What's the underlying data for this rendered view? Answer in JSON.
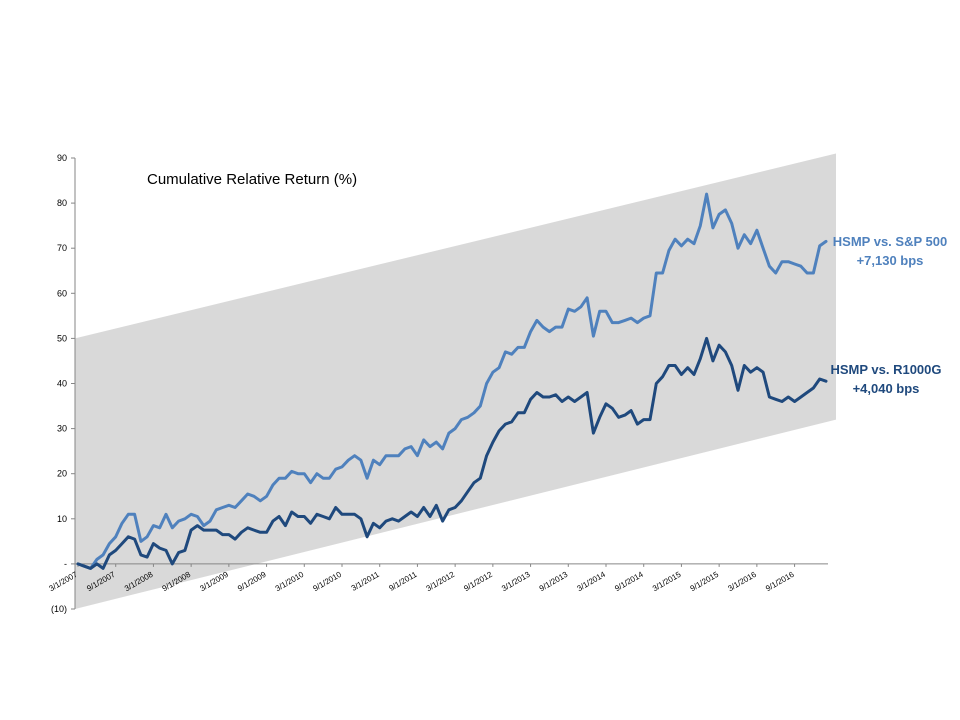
{
  "chart_data": {
    "type": "line",
    "title": "Cumulative Relative Return (%)",
    "ylim": [
      -10,
      90
    ],
    "y_ticks": [
      "(10)",
      "-",
      "10",
      "20",
      "30",
      "40",
      "50",
      "60",
      "70",
      "80",
      "90"
    ],
    "x_tick_labels": [
      "3/1/2007",
      "9/1/2007",
      "3/1/2008",
      "9/1/2008",
      "3/1/2009",
      "9/1/2009",
      "3/1/2010",
      "9/1/2010",
      "3/1/2011",
      "9/1/2011",
      "3/1/2012",
      "9/1/2012",
      "3/1/2013",
      "9/1/2013",
      "3/1/2014",
      "9/1/2014",
      "3/1/2015",
      "9/1/2015",
      "3/1/2016",
      "9/1/2016"
    ],
    "x_start": "3/1/2007",
    "x_end": "12/1/2016",
    "band": {
      "upper": [
        50,
        91
      ],
      "lower": [
        -10,
        32
      ],
      "color": "#d9d9d9"
    },
    "series": [
      {
        "name": "HSMP vs. S&P 500",
        "label_lines": [
          "HSMP vs. S&P 500",
          "+7,130 bps"
        ],
        "color": "#4f81bd",
        "values": [
          0,
          -0.5,
          -1,
          1,
          2,
          4.5,
          6,
          9,
          11,
          11,
          5,
          6,
          8.5,
          8,
          11,
          8,
          9.5,
          10,
          11,
          10.5,
          8.5,
          9.5,
          12,
          12.5,
          13,
          12.5,
          14,
          15.5,
          15,
          14,
          15,
          17.5,
          19,
          19,
          20.5,
          20,
          20,
          18,
          20,
          19,
          19,
          21,
          21.5,
          23,
          24,
          23,
          19,
          23,
          22,
          24,
          24,
          24,
          25.5,
          26,
          24,
          27.5,
          26,
          27,
          25.5,
          29,
          30,
          32,
          32.5,
          33.5,
          35,
          40,
          42.5,
          43.5,
          47,
          46.5,
          48,
          48,
          51.5,
          54,
          52.5,
          51.5,
          52.5,
          52.5,
          56.5,
          56,
          57,
          59,
          50.5,
          56,
          56,
          53.5,
          53.5,
          54,
          54.5,
          53.5,
          54.5,
          55,
          64.5,
          64.5,
          69.5,
          72,
          70.5,
          72,
          71,
          75,
          82,
          74.5,
          77.5,
          78.5,
          75.5,
          70,
          73,
          71,
          74,
          70,
          66,
          64.5,
          67,
          67,
          66.5,
          66,
          64.5,
          64.5,
          70.5,
          71.5
        ]
      },
      {
        "name": "HSMP vs. R1000G",
        "label_lines": [
          "HSMP vs. R1000G",
          "+4,040 bps"
        ],
        "color": "#1f497d",
        "values": [
          0,
          -0.5,
          -1,
          0,
          -1,
          2,
          3,
          4.5,
          6,
          5.5,
          2,
          1.5,
          4.5,
          3.5,
          3,
          0,
          2.5,
          3,
          7.5,
          8.5,
          7.5,
          7.5,
          7.5,
          6.5,
          6.5,
          5.5,
          7,
          8,
          7.5,
          7,
          7,
          9.5,
          10.5,
          8.5,
          11.5,
          10.5,
          10.5,
          9,
          11,
          10.5,
          10,
          12.5,
          11,
          11,
          11,
          10,
          6,
          9,
          8,
          9.5,
          10,
          9.5,
          10.5,
          11.5,
          10.5,
          12.5,
          10.5,
          13,
          9.5,
          12,
          12.5,
          14,
          16,
          18,
          19,
          24,
          27,
          29.5,
          31,
          31.5,
          33.5,
          33.5,
          36.5,
          38,
          37,
          37,
          37.5,
          36,
          37,
          36,
          37,
          38,
          29,
          32.5,
          35.5,
          34.5,
          32.5,
          33,
          34,
          31,
          32,
          32,
          40,
          41.5,
          44,
          44,
          42,
          43.5,
          42,
          45.5,
          50,
          45,
          48.5,
          47,
          44,
          38.5,
          44,
          42.5,
          43.5,
          42.5,
          37,
          36.5,
          36,
          37,
          36,
          37,
          38,
          39,
          41,
          40.5
        ]
      }
    ]
  }
}
